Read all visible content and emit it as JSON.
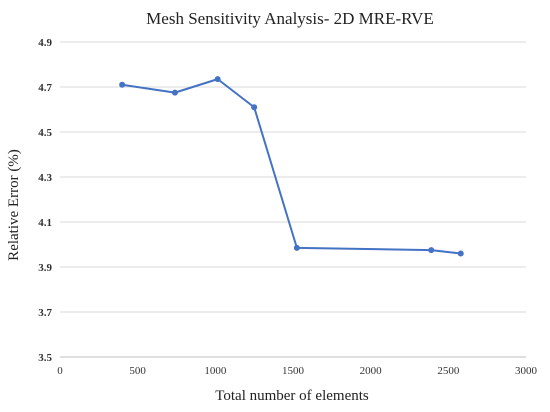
{
  "chart_data": {
    "type": "line",
    "title": "Mesh Sensitivity Analysis- 2D MRE-RVE",
    "xlabel": "Total number of elements",
    "ylabel": "Relative  Error (%)",
    "xlim": [
      0,
      3000
    ],
    "ylim": [
      3.5,
      4.9
    ],
    "xticks": [
      0,
      500,
      1000,
      1500,
      2000,
      2500,
      3000
    ],
    "yticks": [
      3.5,
      3.7,
      3.9,
      4.1,
      4.3,
      4.5,
      4.7,
      4.9
    ],
    "xtick_labels": [
      "0",
      "500",
      "1000",
      "1500",
      "2000",
      "2500",
      "3000"
    ],
    "ytick_labels": [
      "3.5",
      "3.7",
      "3.9",
      "4.1",
      "4.3",
      "4.5",
      "4.7",
      "4.9"
    ],
    "grid": "horizontal",
    "legend": "none",
    "series": [
      {
        "x": [
          400,
          740,
          1015,
          1250,
          1525,
          2390,
          2580
        ],
        "y": [
          4.71,
          4.675,
          4.735,
          4.61,
          3.985,
          3.975,
          3.96
        ]
      }
    ]
  },
  "colors": {
    "series": "#4472c4",
    "grid": "#d9d9d9",
    "text": "#222222"
  }
}
